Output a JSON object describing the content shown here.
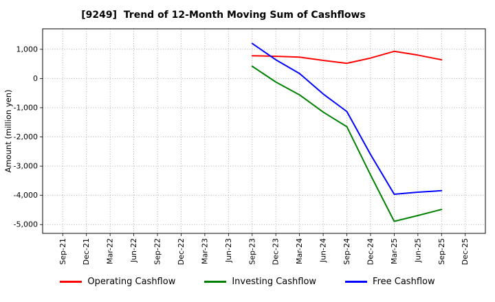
{
  "chart_data": {
    "type": "line",
    "title": "[9249]  Trend of 12-Month Moving Sum of Cashflows",
    "ylabel": "Amount (million yen)",
    "xlabel": "",
    "categories": [
      "Sep-21",
      "Dec-21",
      "Mar-22",
      "Jun-22",
      "Sep-22",
      "Dec-22",
      "Mar-23",
      "Jun-23",
      "Sep-23",
      "Dec-23",
      "Mar-24",
      "Jun-24",
      "Sep-24",
      "Dec-24",
      "Mar-25",
      "Jun-25",
      "Sep-25",
      "Dec-25"
    ],
    "series": [
      {
        "name": "Operating Cashflow",
        "color": "#ff0000",
        "values": [
          null,
          null,
          null,
          null,
          null,
          null,
          null,
          null,
          780,
          760,
          730,
          620,
          520,
          700,
          930,
          800,
          640,
          null
        ]
      },
      {
        "name": "Investing Cashflow",
        "color": "#008000",
        "values": [
          null,
          null,
          null,
          null,
          null,
          null,
          null,
          null,
          420,
          -120,
          -560,
          -1150,
          -1650,
          -3300,
          -4890,
          -4690,
          -4480,
          null
        ]
      },
      {
        "name": "Free Cashflow",
        "color": "#0000ff",
        "values": [
          null,
          null,
          null,
          null,
          null,
          null,
          null,
          null,
          1200,
          640,
          170,
          -530,
          -1130,
          -2600,
          -3960,
          -3890,
          -3840,
          null
        ]
      }
    ],
    "ylim": [
      -5300,
      1700
    ],
    "yticks": [
      {
        "value": 1000,
        "label": "1,000"
      },
      {
        "value": 0,
        "label": "0"
      },
      {
        "value": -1000,
        "label": "-1,000"
      },
      {
        "value": -2000,
        "label": "-2,000"
      },
      {
        "value": -3000,
        "label": "-3,000"
      },
      {
        "value": -4000,
        "label": "-4,000"
      },
      {
        "value": -5000,
        "label": "-5,000"
      }
    ],
    "grid": true,
    "legend_position": "bottom"
  }
}
